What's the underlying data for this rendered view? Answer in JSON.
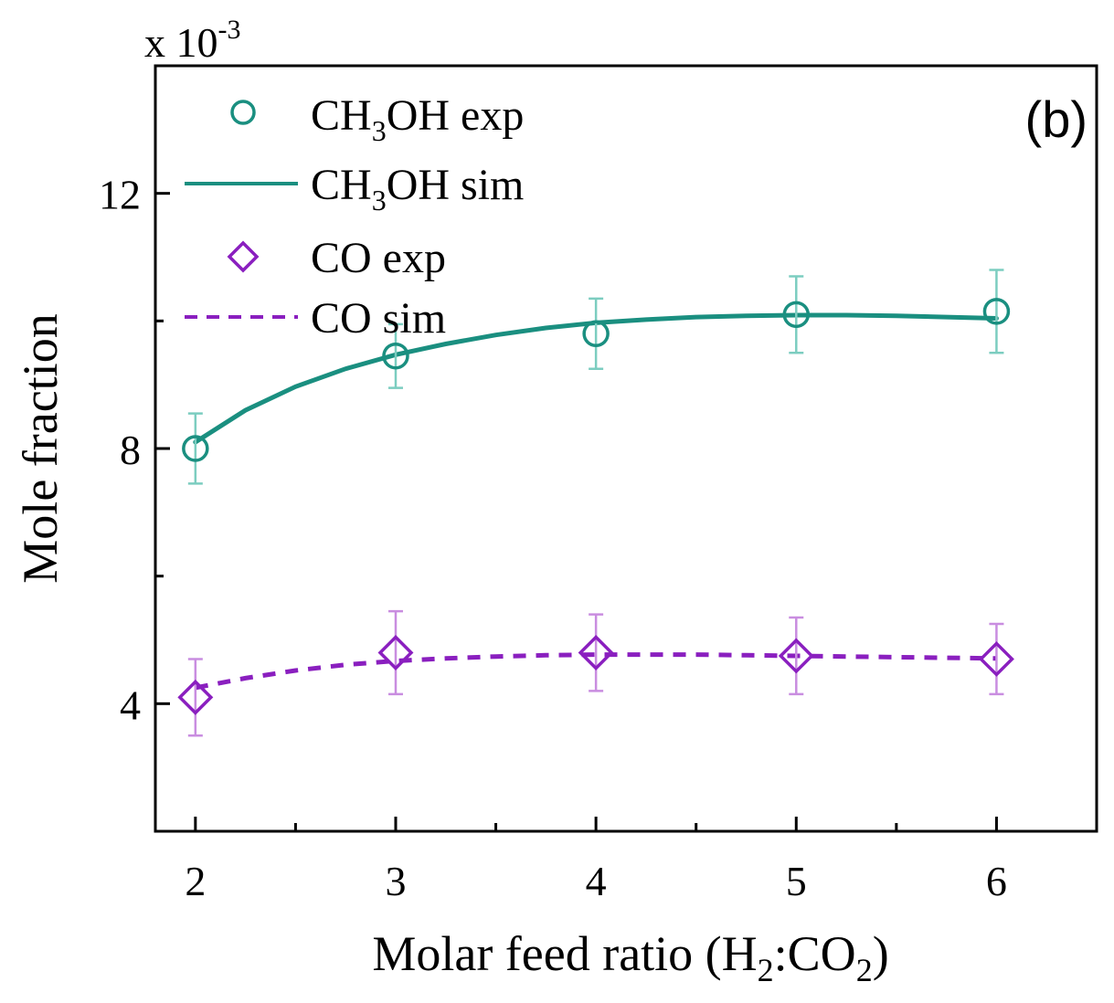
{
  "chart_data": {
    "type": "line",
    "panel_label": "(b)",
    "xlabel_parts": [
      "Molar feed ratio (H",
      "2",
      ":CO",
      "2",
      ")"
    ],
    "ylabel": "Mole fraction",
    "y_multiplier": {
      "base": "x 10",
      "exponent": "-3"
    },
    "xlim": [
      1.8,
      6.5
    ],
    "ylim": [
      2.0,
      14.0
    ],
    "x_ticks": [
      2,
      3,
      4,
      5,
      6
    ],
    "x_tick_labels": [
      "2",
      "3",
      "4",
      "5",
      "6"
    ],
    "y_ticks": [
      4,
      8,
      12
    ],
    "y_tick_labels": [
      "4",
      "8",
      "12"
    ],
    "y_minor_ticks": [
      6,
      10,
      14
    ],
    "x_minor_ticks": [
      2.5,
      3.5,
      4.5,
      5.5
    ],
    "grid": false,
    "legend_position": "top-left",
    "colors": {
      "ch3oh": "#1a8f80",
      "ch3oh_err": "#7ccdc0",
      "co": "#8a1fbf",
      "co_err": "#c98de0",
      "axis": "#000000"
    },
    "series": [
      {
        "name_parts": [
          "CH",
          "3",
          "OH exp"
        ],
        "kind": "scatter",
        "marker": "circle",
        "x": [
          2,
          3,
          4,
          5,
          6
        ],
        "y": [
          8.0,
          9.45,
          9.8,
          10.1,
          10.15
        ],
        "error": [
          0.55,
          0.5,
          0.55,
          0.6,
          0.65
        ]
      },
      {
        "name_parts": [
          "CH",
          "3",
          "OH sim"
        ],
        "kind": "line",
        "style": "solid",
        "x": [
          2,
          2.25,
          2.5,
          2.75,
          3,
          3.25,
          3.5,
          3.75,
          4,
          4.25,
          4.5,
          4.75,
          5,
          5.25,
          5.5,
          5.75,
          6
        ],
        "y": [
          8.1,
          8.6,
          8.97,
          9.25,
          9.47,
          9.64,
          9.78,
          9.89,
          9.97,
          10.02,
          10.06,
          10.08,
          10.09,
          10.09,
          10.08,
          10.06,
          10.04
        ]
      },
      {
        "name_parts": [
          "CO exp"
        ],
        "kind": "scatter",
        "marker": "diamond",
        "x": [
          2,
          3,
          4,
          5,
          6
        ],
        "y": [
          4.1,
          4.8,
          4.8,
          4.75,
          4.7
        ],
        "error": [
          0.6,
          0.65,
          0.6,
          0.6,
          0.55
        ]
      },
      {
        "name_parts": [
          "CO sim"
        ],
        "kind": "line",
        "style": "dashed",
        "x": [
          2,
          2.25,
          2.5,
          2.75,
          3,
          3.25,
          3.5,
          3.75,
          4,
          4.25,
          4.5,
          4.75,
          5,
          5.25,
          5.5,
          5.75,
          6
        ],
        "y": [
          4.25,
          4.4,
          4.52,
          4.61,
          4.67,
          4.71,
          4.74,
          4.76,
          4.77,
          4.77,
          4.77,
          4.76,
          4.75,
          4.74,
          4.73,
          4.72,
          4.71
        ]
      }
    ]
  }
}
